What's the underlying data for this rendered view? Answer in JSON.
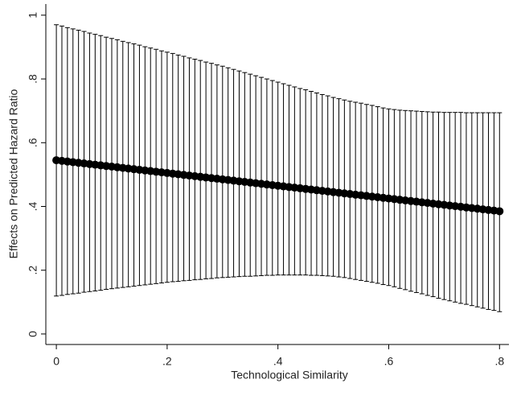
{
  "chart_data": {
    "type": "scatter",
    "x_label": "Technological Similarity",
    "y_label": "Effects on Predicted Hazard Ratio",
    "color": "#000000",
    "error_color": "#000000",
    "x": [
      0,
      0.01,
      0.02,
      0.03,
      0.04,
      0.05,
      0.06,
      0.07,
      0.08,
      0.09,
      0.1,
      0.11,
      0.12,
      0.13,
      0.14,
      0.15,
      0.16,
      0.17,
      0.18,
      0.19,
      0.2,
      0.21,
      0.22,
      0.23,
      0.24,
      0.25,
      0.26,
      0.27,
      0.28,
      0.29,
      0.3,
      0.31,
      0.32,
      0.33,
      0.34,
      0.35,
      0.36,
      0.37,
      0.38,
      0.39,
      0.4,
      0.41,
      0.42,
      0.43,
      0.44,
      0.45,
      0.46,
      0.47,
      0.48,
      0.49,
      0.5,
      0.51,
      0.52,
      0.53,
      0.54,
      0.55,
      0.56,
      0.57,
      0.58,
      0.59,
      0.6,
      0.61,
      0.62,
      0.63,
      0.64,
      0.65,
      0.66,
      0.67,
      0.68,
      0.69,
      0.7,
      0.71,
      0.72,
      0.73,
      0.74,
      0.75,
      0.76,
      0.77,
      0.78,
      0.79,
      0.8
    ],
    "values": [
      0.545,
      0.543,
      0.541,
      0.539,
      0.537,
      0.535,
      0.533,
      0.531,
      0.529,
      0.527,
      0.525,
      0.523,
      0.521,
      0.519,
      0.517,
      0.515,
      0.513,
      0.511,
      0.509,
      0.507,
      0.505,
      0.503,
      0.501,
      0.499,
      0.497,
      0.495,
      0.493,
      0.491,
      0.489,
      0.487,
      0.485,
      0.483,
      0.481,
      0.479,
      0.477,
      0.475,
      0.473,
      0.471,
      0.469,
      0.467,
      0.465,
      0.463,
      0.461,
      0.459,
      0.457,
      0.455,
      0.453,
      0.451,
      0.449,
      0.447,
      0.445,
      0.443,
      0.441,
      0.439,
      0.437,
      0.435,
      0.433,
      0.431,
      0.429,
      0.427,
      0.425,
      0.423,
      0.421,
      0.419,
      0.417,
      0.415,
      0.413,
      0.411,
      0.409,
      0.407,
      0.405,
      0.403,
      0.401,
      0.399,
      0.397,
      0.395,
      0.393,
      0.391,
      0.389,
      0.387,
      0.385
    ],
    "lower": [
      0.119,
      0.121,
      0.124,
      0.126,
      0.128,
      0.131,
      0.133,
      0.135,
      0.137,
      0.14,
      0.142,
      0.144,
      0.146,
      0.148,
      0.15,
      0.152,
      0.154,
      0.156,
      0.158,
      0.16,
      0.162,
      0.164,
      0.165,
      0.167,
      0.168,
      0.17,
      0.171,
      0.173,
      0.174,
      0.176,
      0.177,
      0.178,
      0.179,
      0.18,
      0.181,
      0.181,
      0.182,
      0.183,
      0.184,
      0.184,
      0.185,
      0.185,
      0.185,
      0.185,
      0.185,
      0.185,
      0.184,
      0.184,
      0.183,
      0.182,
      0.181,
      0.179,
      0.177,
      0.174,
      0.171,
      0.168,
      0.165,
      0.162,
      0.159,
      0.155,
      0.152,
      0.148,
      0.143,
      0.139,
      0.134,
      0.13,
      0.126,
      0.121,
      0.117,
      0.112,
      0.108,
      0.104,
      0.1,
      0.096,
      0.093,
      0.089,
      0.085,
      0.081,
      0.077,
      0.074,
      0.07
    ],
    "upper": [
      0.97,
      0.966,
      0.961,
      0.957,
      0.953,
      0.949,
      0.944,
      0.94,
      0.936,
      0.931,
      0.927,
      0.923,
      0.918,
      0.914,
      0.91,
      0.906,
      0.901,
      0.897,
      0.893,
      0.888,
      0.884,
      0.88,
      0.875,
      0.871,
      0.866,
      0.862,
      0.858,
      0.853,
      0.849,
      0.844,
      0.84,
      0.835,
      0.83,
      0.825,
      0.82,
      0.815,
      0.81,
      0.805,
      0.8,
      0.795,
      0.79,
      0.785,
      0.78,
      0.775,
      0.77,
      0.766,
      0.761,
      0.756,
      0.751,
      0.747,
      0.742,
      0.738,
      0.734,
      0.73,
      0.727,
      0.724,
      0.72,
      0.717,
      0.713,
      0.709,
      0.706,
      0.704,
      0.702,
      0.701,
      0.7,
      0.699,
      0.698,
      0.697,
      0.696,
      0.696,
      0.695,
      0.695,
      0.695,
      0.695,
      0.694,
      0.694,
      0.694,
      0.694,
      0.694,
      0.694,
      0.694
    ],
    "xlim": [
      -0.019,
      0.817
    ],
    "ylim": [
      -0.033,
      1.035
    ],
    "xticks": [
      0,
      {
        "value": 0.2,
        "label": ".2"
      },
      {
        "value": 0.4,
        "label": ".4"
      },
      {
        "value": 0.6,
        "label": ".6"
      },
      {
        "value": 0.8,
        "label": ".8"
      }
    ],
    "yticks": [
      0,
      {
        "value": 0.2,
        "label": ".2"
      },
      {
        "value": 0.4,
        "label": ".4"
      },
      {
        "value": 0.6,
        "label": ".6"
      },
      {
        "value": 0.8,
        "label": ".8"
      },
      1
    ],
    "grid": false
  }
}
